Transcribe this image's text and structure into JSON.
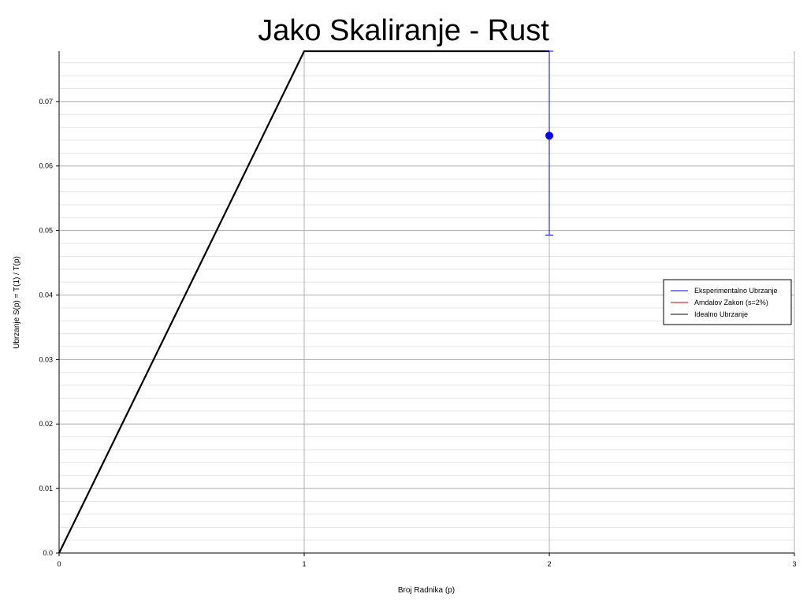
{
  "chart_data": {
    "type": "line",
    "title": "Jako Skaliranje - Rust",
    "xlabel": "Broj Radnika (p)",
    "ylabel": "Ubrzanje S(p) = T(1) / T(p)",
    "xlim": [
      0,
      3
    ],
    "ylim": [
      0,
      0.0778
    ],
    "xticks": [
      0,
      1,
      2,
      3
    ],
    "yticks": [
      0.0,
      0.01,
      0.02,
      0.03,
      0.04,
      0.05,
      0.06,
      0.07
    ],
    "ytick_labels": [
      "0.0",
      "0.01",
      "0.02",
      "0.03",
      "0.04",
      "0.05",
      "0.06",
      "0.07"
    ],
    "grid": true,
    "minor_grid": true,
    "legend_position": "right",
    "series": [
      {
        "name": "Eksperimentalno Ubrzanje",
        "color": "#0000ff",
        "marker": "circle",
        "x": [
          2
        ],
        "y": [
          0.0647
        ],
        "err_low": [
          0.0493
        ],
        "err_high": [
          0.0778
        ]
      },
      {
        "name": "Amdalov Zakon (s=2%)",
        "color": "#cc0000",
        "x": [],
        "y": []
      },
      {
        "name": "Idealno Ubrzanje",
        "color": "#000000",
        "x": [
          0,
          1,
          2
        ],
        "y": [
          0,
          0.0778,
          0.0778
        ]
      }
    ]
  }
}
